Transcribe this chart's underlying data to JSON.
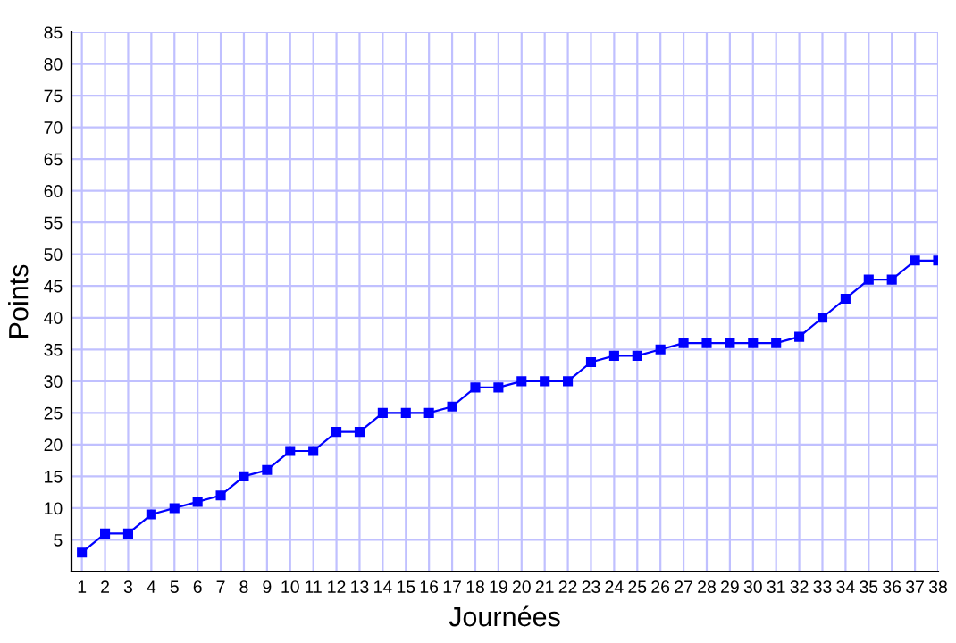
{
  "chart_data": {
    "type": "line",
    "xlabel": "Journées",
    "ylabel": "Points",
    "x": [
      1,
      2,
      3,
      4,
      5,
      6,
      7,
      8,
      9,
      10,
      11,
      12,
      13,
      14,
      15,
      16,
      17,
      18,
      19,
      20,
      21,
      22,
      23,
      24,
      25,
      26,
      27,
      28,
      29,
      30,
      31,
      32,
      33,
      34,
      35,
      36,
      37,
      38
    ],
    "series": [
      {
        "color": "#0000ff",
        "values": [
          3,
          6,
          6,
          9,
          10,
          11,
          12,
          15,
          16,
          19,
          19,
          22,
          22,
          25,
          25,
          25,
          26,
          29,
          29,
          30,
          30,
          30,
          33,
          34,
          34,
          35,
          36,
          36,
          36,
          36,
          36,
          37,
          40,
          43,
          46,
          46,
          49,
          49
        ]
      }
    ],
    "xlim": [
      0.55,
      38
    ],
    "ylim": [
      0,
      85
    ],
    "xticks": [
      1,
      2,
      3,
      4,
      5,
      6,
      7,
      8,
      9,
      10,
      11,
      12,
      13,
      14,
      15,
      16,
      17,
      18,
      19,
      20,
      21,
      22,
      23,
      24,
      25,
      26,
      27,
      28,
      29,
      30,
      31,
      32,
      33,
      34,
      35,
      36,
      37,
      38
    ],
    "yticks": [
      5,
      10,
      15,
      20,
      25,
      30,
      35,
      40,
      45,
      50,
      55,
      60,
      65,
      70,
      75,
      80,
      85
    ],
    "grid": true,
    "marker": "square",
    "line_style": "solid",
    "legend": false
  }
}
